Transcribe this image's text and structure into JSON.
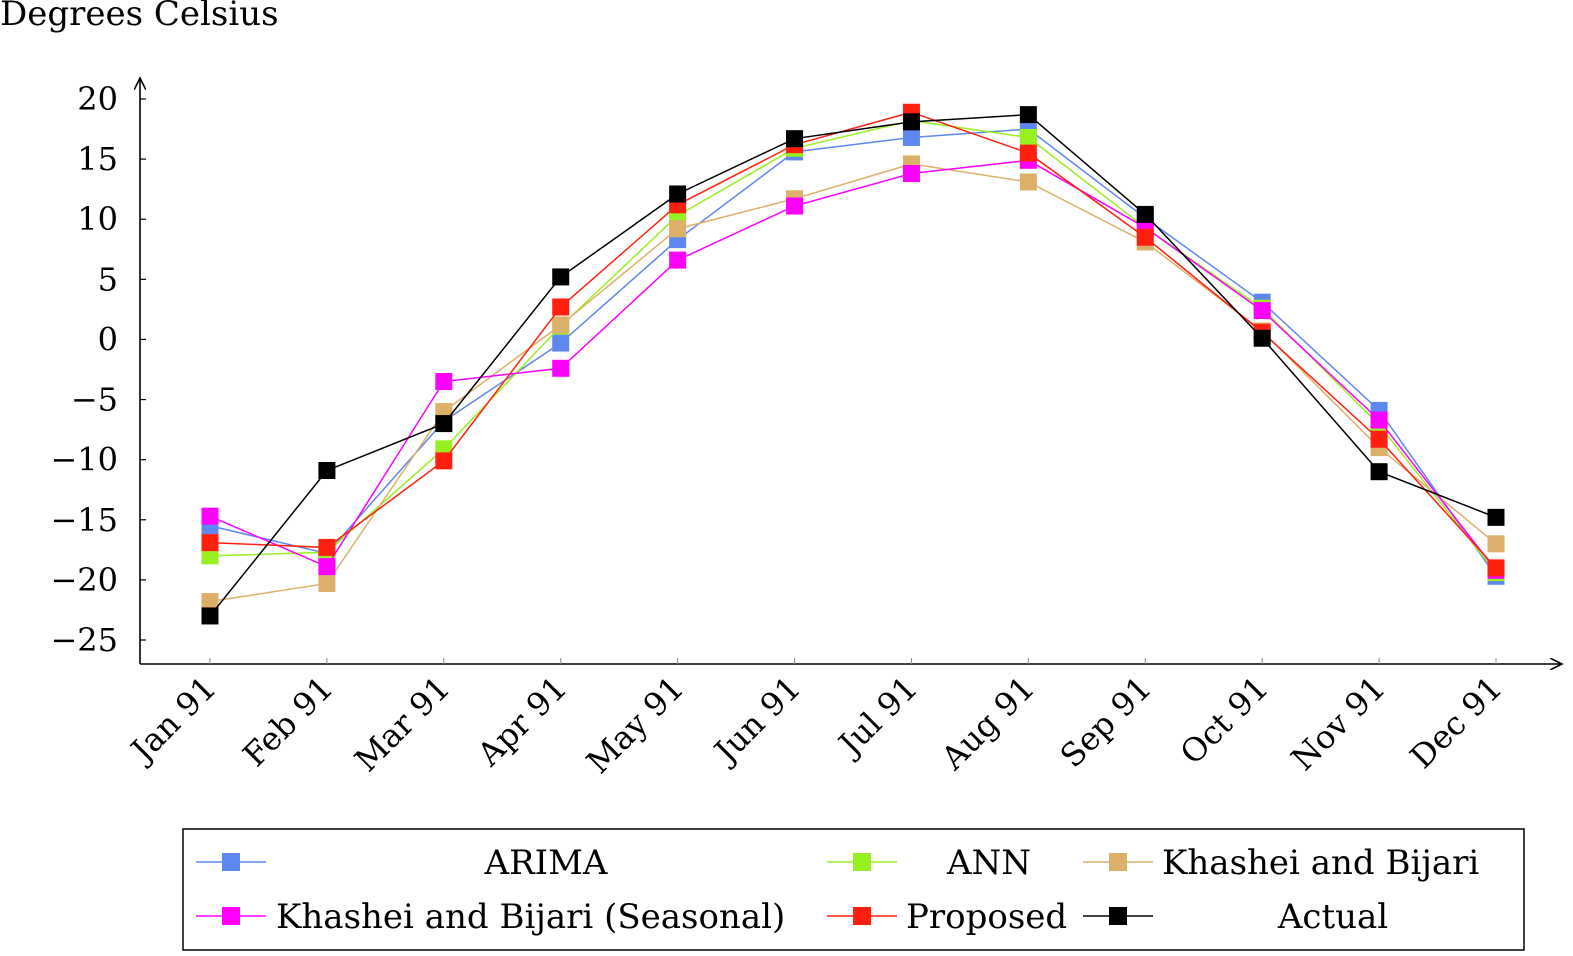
{
  "chart_data": {
    "type": "line",
    "ylabel": "Degrees Celsius",
    "xlabel": "",
    "title": "",
    "categories": [
      "Jan 91",
      "Feb 91",
      "Mar 91",
      "Apr 91",
      "May 91",
      "Jun 91",
      "Jul 91",
      "Aug 91",
      "Sep 91",
      "Oct 91",
      "Nov 91",
      "Dec 91"
    ],
    "ylim": [
      -27,
      22
    ],
    "yticks": [
      20,
      15,
      10,
      5,
      0,
      -5,
      -10,
      -15,
      -20,
      -25
    ],
    "ytick_labels": [
      "20",
      "15",
      "10",
      "5",
      "0",
      "−5",
      "−10",
      "−15",
      "−20",
      "−25"
    ],
    "grid": false,
    "legend_position": "bottom",
    "series": [
      {
        "name": "ARIMA",
        "color": "#5f87f0",
        "values": [
          -15.5,
          -17.8,
          -6.8,
          -0.3,
          8.3,
          15.6,
          16.8,
          17.5,
          10.1,
          3.1,
          -5.9,
          -19.7
        ]
      },
      {
        "name": "ANN",
        "color": "#99f020",
        "values": [
          -18.0,
          -17.7,
          -9.1,
          1.1,
          10.3,
          15.9,
          18.2,
          16.8,
          9.3,
          2.6,
          -7.1,
          -19.4
        ]
      },
      {
        "name": "Khashei and Bijari",
        "color": "#ddb06a",
        "values": [
          -21.8,
          -20.3,
          -6.0,
          1.2,
          9.2,
          11.7,
          14.6,
          13.1,
          8.1,
          0.7,
          -9.0,
          -17.0
        ]
      },
      {
        "name": "Khashei and Bijari (Seasonal)",
        "color": "#ff00ff",
        "values": [
          -14.7,
          -18.9,
          -3.5,
          -2.4,
          6.6,
          11.1,
          13.8,
          14.9,
          9.3,
          2.4,
          -6.7,
          -19.2
        ]
      },
      {
        "name": "Proposed",
        "color": "#ff2010",
        "values": [
          -16.9,
          -17.3,
          -10.1,
          2.7,
          11.2,
          16.2,
          18.9,
          15.5,
          8.5,
          0.6,
          -8.3,
          -19.0
        ]
      },
      {
        "name": "Actual",
        "color": "#000000",
        "values": [
          -23.0,
          -10.9,
          -7.0,
          5.2,
          12.1,
          16.7,
          18.1,
          18.7,
          10.4,
          0.1,
          -11.0,
          -14.8
        ]
      }
    ]
  }
}
